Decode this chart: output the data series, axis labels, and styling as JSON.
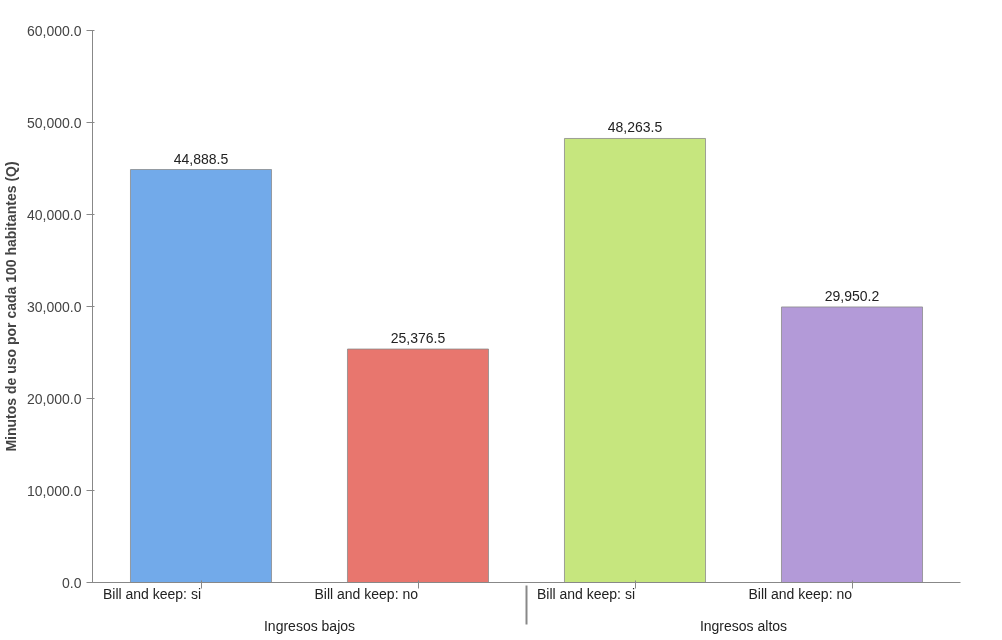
{
  "chart_data": {
    "type": "bar",
    "ylabel": "Minutos de uso por cada 100 habitantes (Q)",
    "categories": [
      "Bill and keep: si",
      "Bill and keep: no",
      "Bill and keep: si",
      "Bill and keep: no"
    ],
    "values": [
      44888.5,
      25376.5,
      48263.5,
      29950.2
    ],
    "value_labels": [
      "44,888.5",
      "25,376.5",
      "48,263.5",
      "29,950.2"
    ],
    "colors": [
      "#72aaea",
      "#e8766e",
      "#c6e67e",
      "#b39ad8"
    ],
    "ylim": [
      0,
      60000
    ],
    "yticks": [
      {
        "value": 0,
        "label": "0.0"
      },
      {
        "value": 10000,
        "label": "10,000.0"
      },
      {
        "value": 20000,
        "label": "20,000.0"
      },
      {
        "value": 30000,
        "label": "30,000.0"
      },
      {
        "value": 40000,
        "label": "40,000.0"
      },
      {
        "value": 50000,
        "label": "50,000.0"
      },
      {
        "value": 60000,
        "label": "60,000.0"
      }
    ],
    "annotations": [
      "Ingresos bajos",
      "Ingresos altos"
    ],
    "grid": false
  }
}
